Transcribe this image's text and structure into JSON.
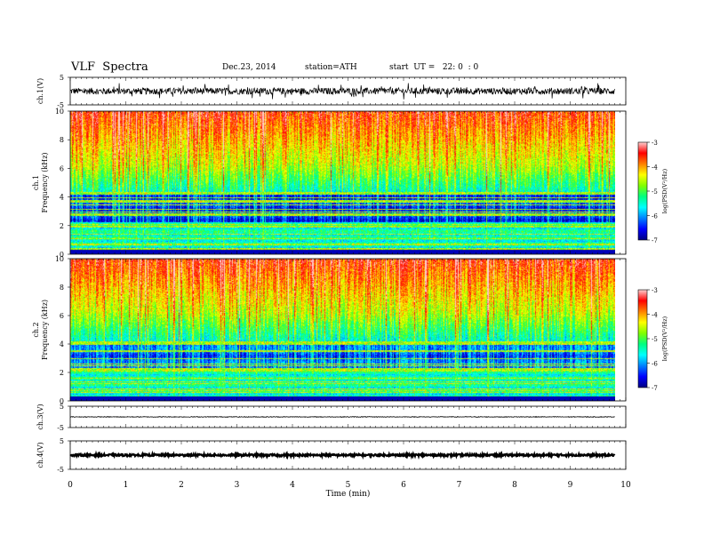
{
  "header": {
    "title": "VLF  Spectra",
    "date": "Dec.23, 2014",
    "station": "station=ATH",
    "start_ut": "start  UT =   22: 0  : 0"
  },
  "chart_data": {
    "type": "heatmap",
    "xlabel": "Time  (min)",
    "x_ticks": [
      "0",
      "1",
      "2",
      "3",
      "4",
      "5",
      "6",
      "7",
      "8",
      "9",
      "10"
    ],
    "xlim": [
      0,
      10
    ],
    "data_end_min": 9.8,
    "panels": [
      {
        "kind": "waveform",
        "ylabel": "ch.1(V)",
        "ylim": [
          -5,
          5
        ],
        "y_ticks": [
          "5",
          "-5"
        ],
        "amplitude": 1.2
      },
      {
        "kind": "spectrogram",
        "ylabel": "ch.1\nFrequency  (kHz)",
        "ylim": [
          0,
          10
        ],
        "y_ticks": [
          "0",
          "2",
          "4",
          "6",
          "8",
          "10"
        ]
      },
      {
        "kind": "spectrogram",
        "ylabel": "ch.2\nFrequency  (kHz)",
        "ylim": [
          0,
          10
        ],
        "y_ticks": [
          "0",
          "2",
          "4",
          "6",
          "8",
          "10"
        ]
      },
      {
        "kind": "waveform",
        "ylabel": "ch.3(V)",
        "ylim": [
          -5,
          5
        ],
        "y_ticks": [
          "5",
          "-5"
        ],
        "amplitude": 0.15
      },
      {
        "kind": "waveform",
        "ylabel": "ch.4(V)",
        "ylim": [
          -5,
          5
        ],
        "y_ticks": [
          "5",
          "-5"
        ],
        "amplitude": 0.35
      }
    ],
    "colorbar": {
      "label": "log(PSD(V²/Hz)",
      "range": [
        -7,
        -3
      ],
      "ticks": [
        "-3",
        "-4",
        "-5",
        "-6",
        "-7"
      ],
      "colors": [
        "#000080",
        "#0000ff",
        "#0080ff",
        "#00ffff",
        "#00ff80",
        "#80ff00",
        "#ffff00",
        "#ff8000",
        "#ff0000",
        "#ffd0d0"
      ]
    }
  }
}
